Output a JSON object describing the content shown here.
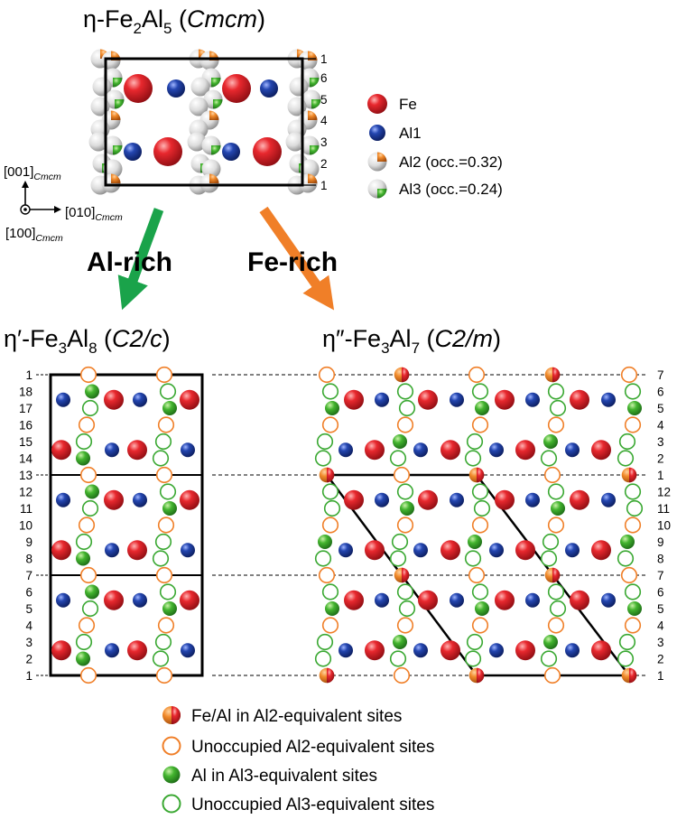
{
  "top": {
    "title": {
      "prefix": "η-Fe",
      "sub1": "2",
      "mid": "Al",
      "sub2": "5",
      "space": " (",
      "group": "Cmcm",
      "close": ")"
    },
    "row_labels": [
      "1",
      "6",
      "5",
      "4",
      "3",
      "2",
      "1"
    ],
    "legend": [
      {
        "label": "Fe",
        "color": "#d9262b"
      },
      {
        "label": "Al1",
        "color": "#1f3f9c"
      },
      {
        "label": "Al2 (occ.=0.32)",
        "color": "#f07f28"
      },
      {
        "label": "Al3 (occ.=0.24)",
        "color": "#3aa832"
      }
    ]
  },
  "axes": {
    "z": {
      "label": "[001]",
      "sub": "Cmcm"
    },
    "y": {
      "label": "[010]",
      "sub": "Cmcm"
    },
    "x": {
      "label": "[100]",
      "sub": "Cmcm"
    }
  },
  "arrows": {
    "left": "Al-rich",
    "right": "Fe-rich"
  },
  "left_panel": {
    "title": {
      "prefix": "η′-Fe",
      "sub1": "3",
      "mid": "Al",
      "sub2": "8",
      "space": " (",
      "group": "C2/c",
      "close": ")"
    },
    "row_labels": [
      "1",
      "18",
      "17",
      "16",
      "15",
      "14",
      "13",
      "12",
      "11",
      "10",
      "9",
      "8",
      "7",
      "6",
      "5",
      "4",
      "3",
      "2",
      "1"
    ]
  },
  "right_panel": {
    "title": {
      "prefix": "η″-Fe",
      "sub1": "3",
      "mid": "Al",
      "sub2": "7",
      "space": " (",
      "group": "C2/m",
      "close": ")"
    },
    "row_labels": [
      "7",
      "6",
      "5",
      "4",
      "3",
      "2",
      "1",
      "12",
      "11",
      "10",
      "9",
      "8",
      "7",
      "6",
      "5",
      "4",
      "3",
      "2",
      "1"
    ]
  },
  "key": [
    {
      "label": "Fe/Al in Al2-equivalent sites",
      "symbol": "half-fe-al"
    },
    {
      "label": "Unoccupied Al2-equivalent sites",
      "symbol": "open-orange"
    },
    {
      "label": "Al in Al3-equivalent sites",
      "symbol": "green"
    },
    {
      "label": "Unoccupied Al3-equivalent sites",
      "symbol": "open-green"
    }
  ],
  "colors": {
    "fe": "#d9262b",
    "al1": "#1f3f9c",
    "al2": "#f07f28",
    "al3": "#3aa832",
    "arrow_left": "#1aa34a",
    "arrow_right": "#f07f28"
  }
}
